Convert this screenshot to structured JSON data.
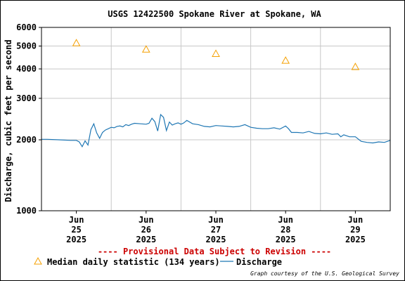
{
  "chart_data": {
    "type": "line",
    "title": "USGS 12422500 Spokane River at Spokane, WA",
    "ylabel": "Discharge, cubic feet per second",
    "xlabel": "",
    "yscale": "log",
    "ylim": [
      1000,
      6000
    ],
    "yticks": [
      "1000",
      "2000",
      "3000",
      "4000",
      "5000",
      "6000"
    ],
    "xlim": [
      "2025-06-24T12:00",
      "2025-06-29T12:00"
    ],
    "xticks": [
      {
        "month": "Jun",
        "day": "25",
        "year": "2025"
      },
      {
        "month": "Jun",
        "day": "26",
        "year": "2025"
      },
      {
        "month": "Jun",
        "day": "27",
        "year": "2025"
      },
      {
        "month": "Jun",
        "day": "28",
        "year": "2025"
      },
      {
        "month": "Jun",
        "day": "29",
        "year": "2025"
      }
    ],
    "grid": true,
    "legend_position": "bottom",
    "series": [
      {
        "name": "Median daily statistic (134 years)",
        "type": "scatter",
        "marker": "triangle",
        "color": "#f5a000",
        "x": [
          "2025-06-25T00:00",
          "2025-06-26T00:00",
          "2025-06-27T00:00",
          "2025-06-28T00:00",
          "2025-06-29T00:00"
        ],
        "values": [
          5150,
          4840,
          4640,
          4340,
          4080
        ]
      },
      {
        "name": "Discharge",
        "type": "line",
        "color": "#1f77b4",
        "x": [
          "2025-06-24T12:00",
          "2025-06-24T14:00",
          "2025-06-24T18:00",
          "2025-06-24T22:00",
          "2025-06-25T00:00",
          "2025-06-25T01:00",
          "2025-06-25T02:00",
          "2025-06-25T03:00",
          "2025-06-25T04:00",
          "2025-06-25T05:00",
          "2025-06-25T06:00",
          "2025-06-25T07:00",
          "2025-06-25T08:00",
          "2025-06-25T09:00",
          "2025-06-25T10:00",
          "2025-06-25T11:00",
          "2025-06-25T12:00",
          "2025-06-25T13:00",
          "2025-06-25T14:00",
          "2025-06-25T15:00",
          "2025-06-25T16:00",
          "2025-06-25T17:00",
          "2025-06-25T18:00",
          "2025-06-25T19:00",
          "2025-06-25T20:00",
          "2025-06-25T22:00",
          "2025-06-26T00:00",
          "2025-06-26T01:00",
          "2025-06-26T02:00",
          "2025-06-26T03:00",
          "2025-06-26T04:00",
          "2025-06-26T05:00",
          "2025-06-26T06:00",
          "2025-06-26T07:00",
          "2025-06-26T08:00",
          "2025-06-26T09:00",
          "2025-06-26T10:00",
          "2025-06-26T11:00",
          "2025-06-26T12:00",
          "2025-06-26T13:00",
          "2025-06-26T14:00",
          "2025-06-26T16:00",
          "2025-06-26T18:00",
          "2025-06-26T20:00",
          "2025-06-26T22:00",
          "2025-06-27T00:00",
          "2025-06-27T02:00",
          "2025-06-27T04:00",
          "2025-06-27T06:00",
          "2025-06-27T08:00",
          "2025-06-27T10:00",
          "2025-06-27T12:00",
          "2025-06-27T14:00",
          "2025-06-27T16:00",
          "2025-06-27T18:00",
          "2025-06-27T20:00",
          "2025-06-27T22:00",
          "2025-06-28T00:00",
          "2025-06-28T01:00",
          "2025-06-28T02:00",
          "2025-06-28T04:00",
          "2025-06-28T06:00",
          "2025-06-28T08:00",
          "2025-06-28T10:00",
          "2025-06-28T12:00",
          "2025-06-28T14:00",
          "2025-06-28T16:00",
          "2025-06-28T18:00",
          "2025-06-28T19:00",
          "2025-06-28T20:00",
          "2025-06-28T22:00",
          "2025-06-29T00:00",
          "2025-06-29T02:00",
          "2025-06-29T04:00",
          "2025-06-29T06:00",
          "2025-06-29T08:00",
          "2025-06-29T10:00",
          "2025-06-29T12:00"
        ],
        "values": [
          2010,
          2010,
          2000,
          1990,
          1990,
          1960,
          1870,
          1980,
          1900,
          2210,
          2340,
          2140,
          2030,
          2150,
          2200,
          2230,
          2260,
          2250,
          2280,
          2290,
          2270,
          2320,
          2300,
          2330,
          2350,
          2340,
          2330,
          2350,
          2470,
          2390,
          2180,
          2560,
          2490,
          2190,
          2380,
          2310,
          2340,
          2360,
          2330,
          2360,
          2420,
          2340,
          2320,
          2280,
          2270,
          2300,
          2290,
          2280,
          2270,
          2280,
          2320,
          2260,
          2240,
          2230,
          2230,
          2250,
          2220,
          2290,
          2230,
          2150,
          2150,
          2140,
          2170,
          2130,
          2120,
          2140,
          2110,
          2120,
          2060,
          2100,
          2060,
          2060,
          1970,
          1950,
          1940,
          1960,
          1950,
          1990
        ]
      }
    ]
  },
  "annotations": {
    "provisional": "---- Provisional Data Subject to Revision ----",
    "provisional_color": "#cc0000",
    "credit": "Graph courtesy of the U.S. Geological Survey"
  },
  "legend": {
    "median_label": "Median daily statistic (134 years)",
    "discharge_label": "Discharge"
  }
}
